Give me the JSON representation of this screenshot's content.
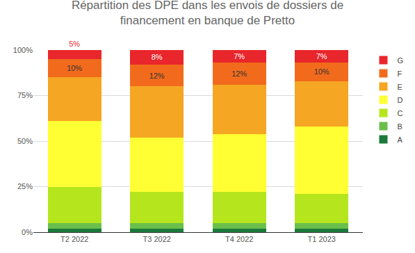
{
  "chart_data": {
    "type": "bar",
    "stacked": true,
    "title": "Répartition des DPE dans les envois de dossiers de\nfinancement en banque de Pretto",
    "categories": [
      "T2 2022",
      "T3 2022",
      "T4 2022",
      "T1 2023"
    ],
    "series": [
      {
        "name": "A",
        "color": "#1b7a3b",
        "values": [
          2,
          2,
          2,
          2
        ]
      },
      {
        "name": "B",
        "color": "#6abf4b",
        "values": [
          3,
          3,
          3,
          3
        ]
      },
      {
        "name": "C",
        "color": "#b5e61d",
        "values": [
          20,
          17,
          17,
          16
        ]
      },
      {
        "name": "D",
        "color": "#ffff33",
        "values": [
          36,
          30,
          32,
          37
        ]
      },
      {
        "name": "E",
        "color": "#f5a623",
        "values": [
          24,
          28,
          27,
          25
        ]
      },
      {
        "name": "F",
        "color": "#f26b1d",
        "values": [
          10,
          12,
          12,
          10
        ],
        "value_labels": [
          "10%",
          "12%",
          "12%",
          "10%"
        ]
      },
      {
        "name": "G",
        "color": "#e8262b",
        "values": [
          5,
          8,
          7,
          7
        ],
        "value_labels": [
          "5%",
          "8%",
          "7%",
          "7%"
        ]
      }
    ],
    "ylim": [
      0,
      100
    ],
    "yticks": [
      {
        "value": 0,
        "label": "0%"
      },
      {
        "value": 25,
        "label": "25%"
      },
      {
        "value": 50,
        "label": "50%"
      },
      {
        "value": 75,
        "label": "75%"
      },
      {
        "value": 100,
        "label": "100%"
      }
    ],
    "grid": true,
    "legend": "right"
  }
}
